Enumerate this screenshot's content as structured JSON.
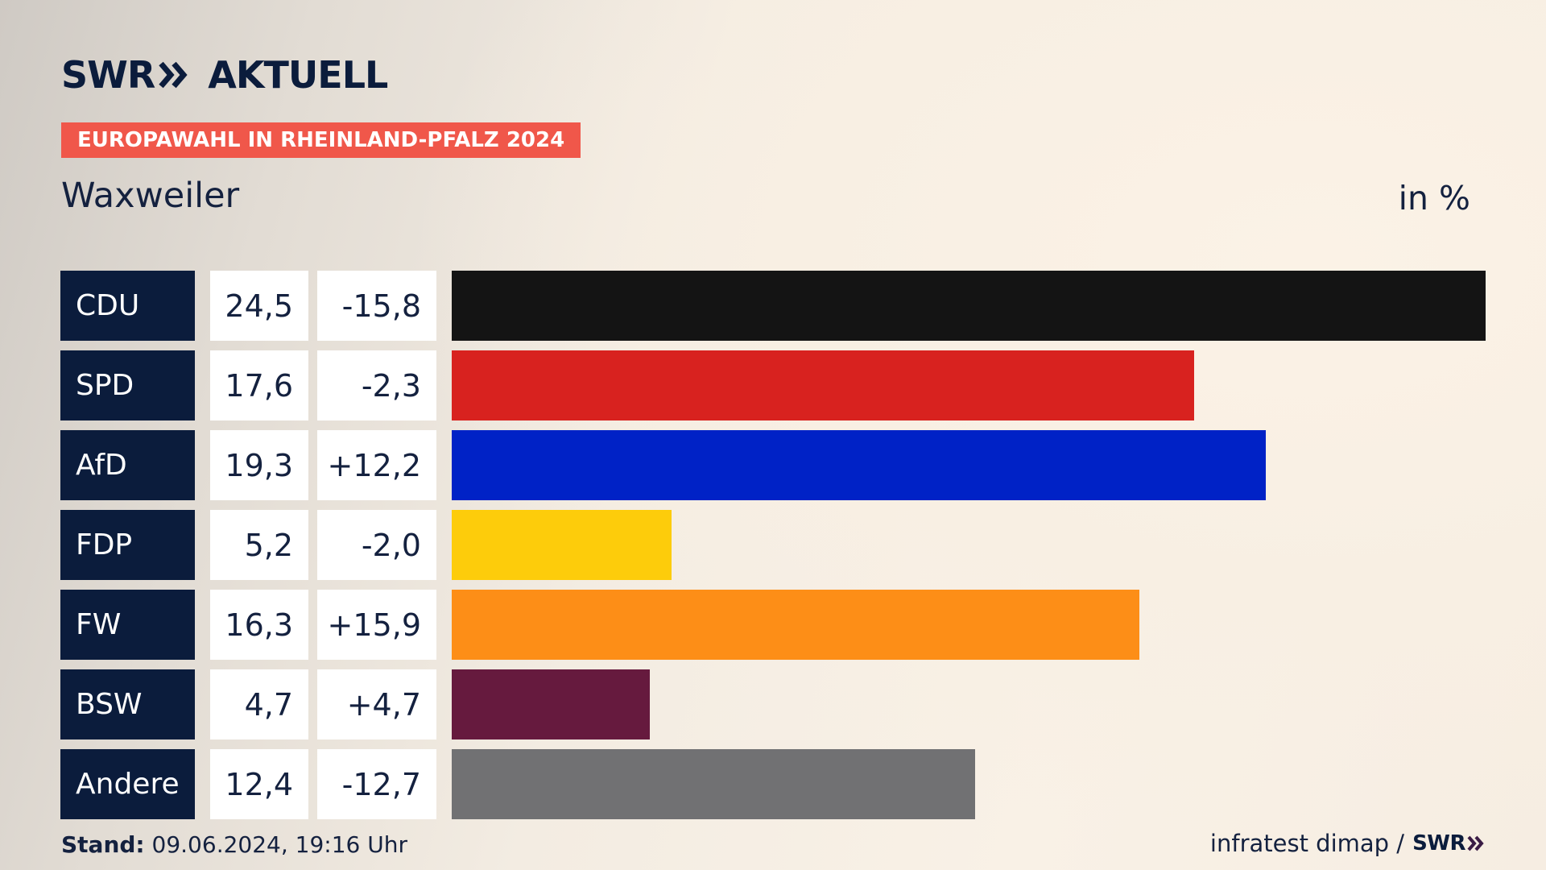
{
  "brand": {
    "logo_swr": "SWR",
    "logo_word": "AKTUELL"
  },
  "badge": "EUROPAWAHL IN RHEINLAND-PFALZ 2024",
  "place": "Waxweiler",
  "unit": "in %",
  "chart_data": {
    "type": "bar",
    "orientation": "horizontal",
    "categories": [
      "CDU",
      "SPD",
      "AfD",
      "FDP",
      "FW",
      "BSW",
      "Andere"
    ],
    "values": [
      24.5,
      17.6,
      19.3,
      5.2,
      16.3,
      4.7,
      12.4
    ],
    "value_labels": [
      "24,5",
      "17,6",
      "19,3",
      "5,2",
      "16,3",
      "4,7",
      "12,4"
    ],
    "diff_labels": [
      "-15,8",
      "-2,3",
      "+12,2",
      "-2,0",
      "+15,9",
      "+4,7",
      "-12,7"
    ],
    "colors": [
      "#141414",
      "#d8221f",
      "#0022c6",
      "#fdcc0b",
      "#fd8e17",
      "#661a3e",
      "#717173"
    ],
    "xlim": [
      0,
      24.5
    ]
  },
  "footer": {
    "stand_label": "Stand:",
    "stand_value": "09.06.2024, 19:16 Uhr",
    "source": "infratest dimap /",
    "source_logo": "SWR"
  }
}
